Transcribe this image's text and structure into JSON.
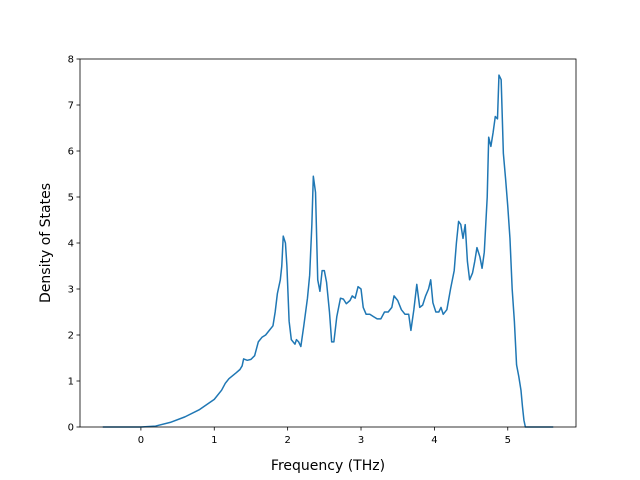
{
  "chart_data": {
    "type": "line",
    "xlabel": "Frequency (THz)",
    "ylabel": "Density of States",
    "xlim": [
      -0.83,
      5.93
    ],
    "ylim": [
      0,
      8
    ],
    "xticks": [
      0,
      1,
      2,
      3,
      4,
      5
    ],
    "yticks": [
      0,
      1,
      2,
      3,
      4,
      5,
      6,
      7,
      8
    ],
    "color": "#1f77b4",
    "x": [
      -0.52,
      0.0,
      0.2,
      0.4,
      0.6,
      0.8,
      1.0,
      1.1,
      1.15,
      1.2,
      1.3,
      1.35,
      1.38,
      1.4,
      1.45,
      1.5,
      1.55,
      1.6,
      1.65,
      1.7,
      1.75,
      1.8,
      1.83,
      1.86,
      1.9,
      1.92,
      1.94,
      1.97,
      1.99,
      2.02,
      2.05,
      2.1,
      2.12,
      2.15,
      2.18,
      2.22,
      2.27,
      2.3,
      2.33,
      2.35,
      2.38,
      2.41,
      2.44,
      2.47,
      2.5,
      2.53,
      2.57,
      2.6,
      2.63,
      2.67,
      2.72,
      2.76,
      2.8,
      2.85,
      2.88,
      2.92,
      2.96,
      3.0,
      3.03,
      3.07,
      3.12,
      3.17,
      3.22,
      3.27,
      3.32,
      3.37,
      3.42,
      3.45,
      3.5,
      3.55,
      3.6,
      3.65,
      3.68,
      3.72,
      3.76,
      3.8,
      3.84,
      3.88,
      3.92,
      3.95,
      3.98,
      4.02,
      4.06,
      4.09,
      4.12,
      4.17,
      4.22,
      4.27,
      4.3,
      4.33,
      4.36,
      4.39,
      4.42,
      4.45,
      4.48,
      4.52,
      4.55,
      4.58,
      4.62,
      4.65,
      4.68,
      4.72,
      4.74,
      4.77,
      4.8,
      4.83,
      4.86,
      4.88,
      4.91,
      4.94,
      4.97,
      5.0,
      5.03,
      5.06,
      5.09,
      5.12,
      5.15,
      5.18,
      5.2,
      5.22,
      5.24,
      5.62
    ],
    "y": [
      0,
      0,
      0.02,
      0.1,
      0.22,
      0.38,
      0.6,
      0.8,
      0.95,
      1.05,
      1.18,
      1.25,
      1.33,
      1.48,
      1.45,
      1.47,
      1.55,
      1.85,
      1.95,
      2.0,
      2.1,
      2.2,
      2.5,
      2.9,
      3.2,
      3.5,
      4.15,
      4.0,
      3.5,
      2.3,
      1.9,
      1.8,
      1.9,
      1.85,
      1.75,
      2.2,
      2.8,
      3.3,
      4.4,
      5.45,
      5.1,
      3.2,
      2.95,
      3.4,
      3.4,
      3.15,
      2.5,
      1.85,
      1.85,
      2.4,
      2.8,
      2.78,
      2.68,
      2.75,
      2.85,
      2.8,
      3.05,
      3.0,
      2.6,
      2.45,
      2.45,
      2.4,
      2.35,
      2.35,
      2.5,
      2.5,
      2.6,
      2.85,
      2.75,
      2.55,
      2.45,
      2.45,
      2.1,
      2.55,
      3.1,
      2.6,
      2.65,
      2.85,
      3.0,
      3.2,
      2.7,
      2.5,
      2.5,
      2.6,
      2.45,
      2.55,
      3.0,
      3.4,
      4.0,
      4.47,
      4.4,
      4.1,
      4.4,
      3.6,
      3.2,
      3.35,
      3.6,
      3.9,
      3.7,
      3.45,
      3.8,
      5.0,
      6.3,
      6.1,
      6.4,
      6.75,
      6.7,
      7.65,
      7.55,
      5.95,
      5.4,
      4.8,
      4.1,
      3.0,
      2.3,
      1.35,
      1.1,
      0.8,
      0.45,
      0.15,
      0,
      0
    ]
  }
}
